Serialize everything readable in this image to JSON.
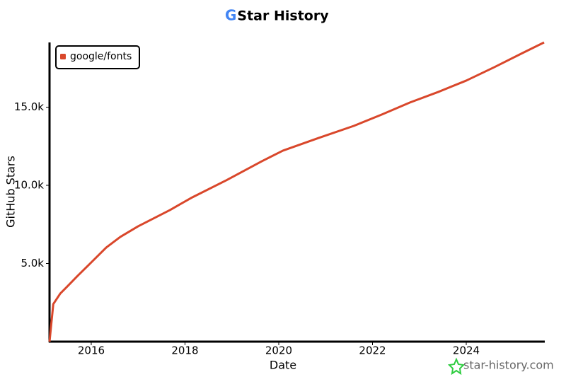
{
  "chart_data": {
    "type": "line",
    "title": "Star History",
    "x_label": "Date",
    "y_label": "GitHub Stars",
    "x": [
      2015.11,
      2015.19,
      2015.34,
      2015.49,
      2015.71,
      2015.94,
      2016.32,
      2016.62,
      2017.0,
      2017.68,
      2018.13,
      2018.88,
      2019.64,
      2020.09,
      2020.85,
      2021.6,
      2022.2,
      2022.8,
      2023.4,
      2024.0,
      2024.6,
      2025.2,
      2025.66
    ],
    "series": [
      {
        "name": "google/fonts",
        "color": "#d9472b",
        "values": [
          0,
          2400,
          3080,
          3530,
          4210,
          4890,
          6020,
          6700,
          7380,
          8420,
          9190,
          10320,
          11540,
          12220,
          13030,
          13800,
          14530,
          15300,
          15970,
          16700,
          17560,
          18460,
          19140
        ]
      }
    ],
    "xlim": [
      2015.11,
      2025.66
    ],
    "xticks": [
      2016,
      2018,
      2020,
      2022,
      2024
    ],
    "ylim": [
      0,
      19140
    ],
    "yticks": [
      {
        "value": 5000,
        "label": "5.0k"
      },
      {
        "value": 10000,
        "label": "10.0k"
      },
      {
        "value": 15000,
        "label": "15.0k"
      }
    ],
    "legend": "upper-left",
    "watermark": "star-history.com"
  }
}
